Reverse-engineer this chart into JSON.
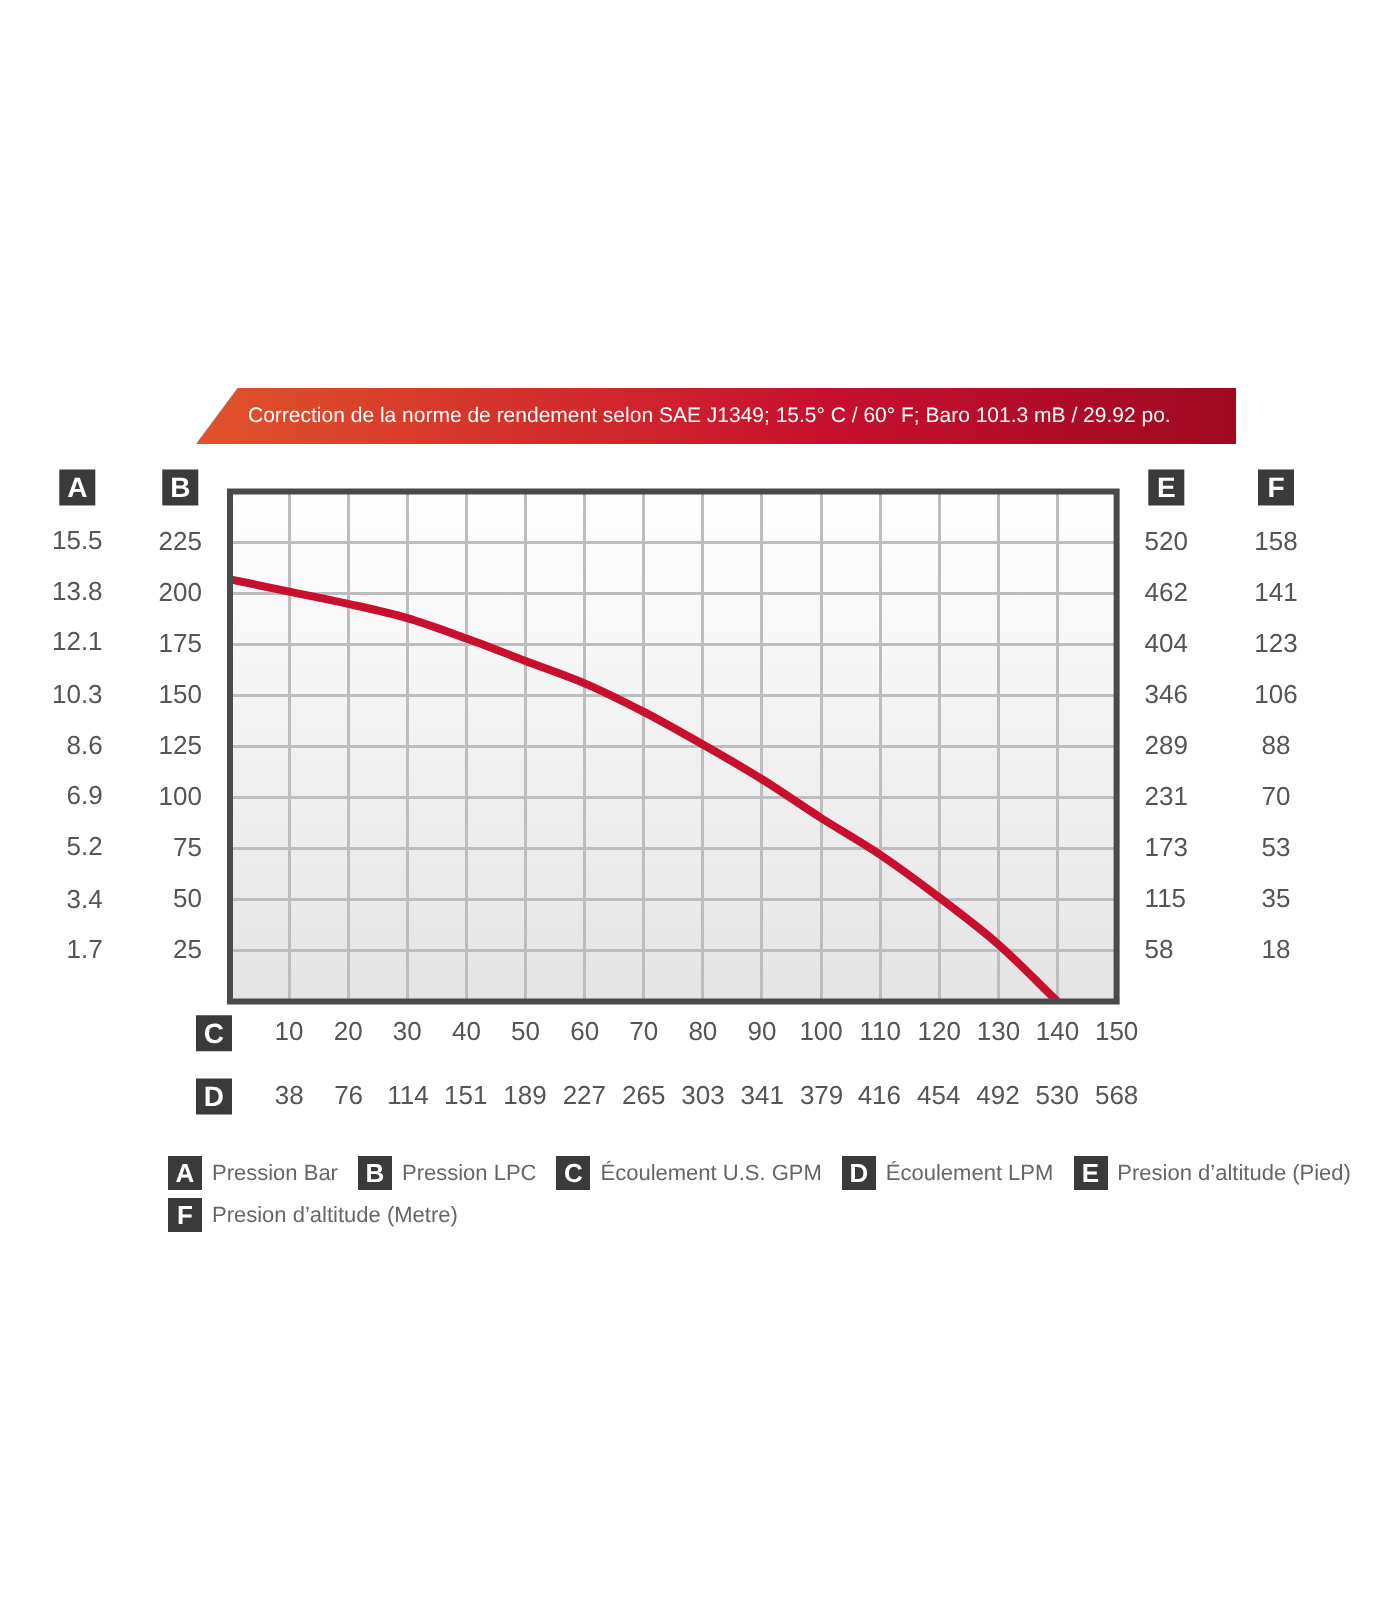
{
  "chart_data": {
    "type": "line",
    "title": "Correction de la norme de rendement selon SAE J1349;  15.5° C  / 60° F;  Baro 101.3 mB / 29.92 po.",
    "annotations": [
      "A",
      "B",
      "C",
      "D",
      "E",
      "F",
      "Pression Bar",
      "Pression LPC",
      "Écoulement U.S. GPM",
      "Écoulement LPM",
      "Presion d’altitude (Pied)",
      "Presion d’altitude (Metre)",
      "18",
      "35",
      "53",
      "70",
      "88",
      "106",
      "123",
      "141",
      "158"
    ],
    "x": [
      0,
      10,
      20,
      30,
      40,
      50,
      60,
      70,
      80,
      90,
      100,
      110,
      120,
      130,
      140
    ],
    "series": [
      {
        "color": "#c8102e",
        "values": [
          207,
          201,
          195,
          188,
          178,
          167,
          156,
          142,
          126,
          109,
          90,
          72,
          51,
          28,
          0
        ]
      }
    ],
    "xlim": [
      0,
      150
    ],
    "xticks": [
      10,
      20,
      30,
      40,
      50,
      60,
      70,
      80,
      90,
      100,
      110,
      120,
      130,
      140,
      150
    ],
    "x2lim": [
      0,
      568
    ],
    "x2ticks": [
      38,
      76,
      114,
      151,
      189,
      227,
      265,
      303,
      341,
      379,
      416,
      454,
      492,
      530,
      568
    ],
    "ylim": [
      0,
      250
    ],
    "yticks": [
      25,
      50,
      75,
      100,
      125,
      150,
      175,
      200,
      225
    ],
    "y2lim": [
      0,
      578
    ],
    "y2ticks": [
      58,
      115,
      173,
      231,
      289,
      346,
      404,
      462,
      520
    ],
    "y3lim": [
      0,
      17.2
    ],
    "y3ticks": [
      1.7,
      3.4,
      5.2,
      6.9,
      8.6,
      10.3,
      12.1,
      13.8,
      15.5
    ],
    "grid": true,
    "legend": false,
    "marker": "none",
    "line_style": "solid"
  }
}
